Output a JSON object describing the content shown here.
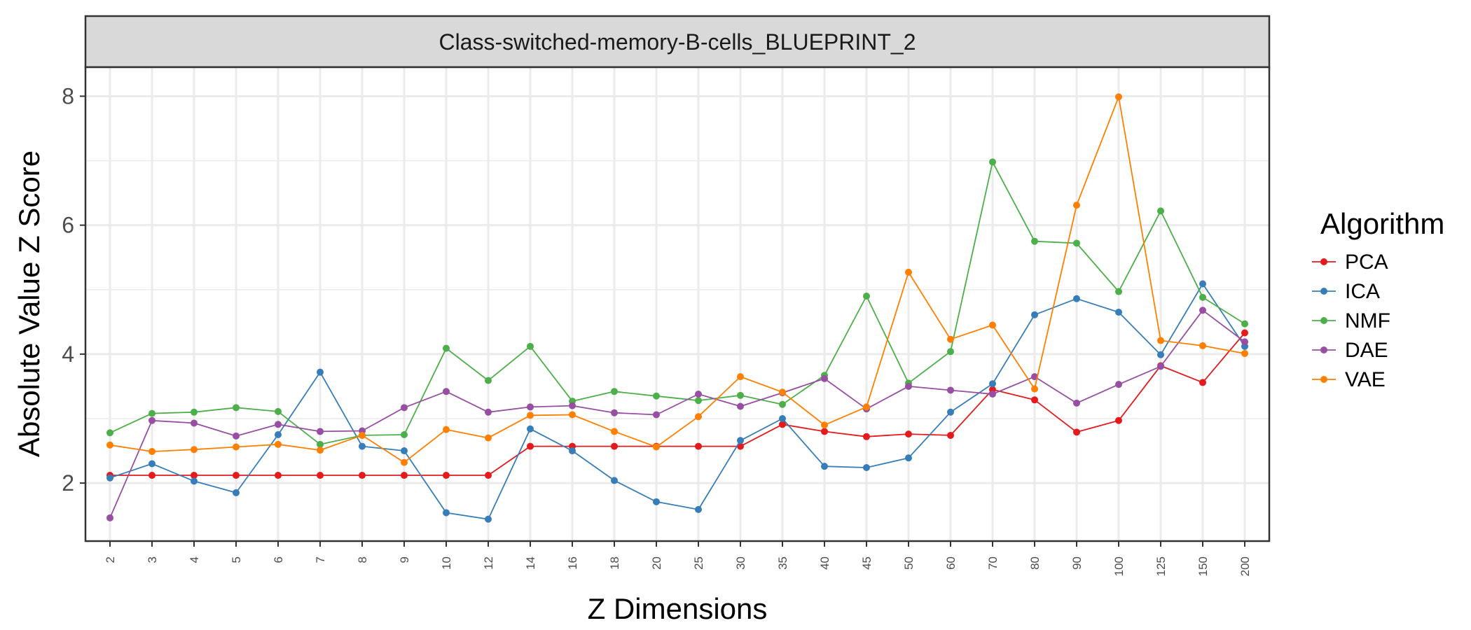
{
  "chart_data": {
    "type": "line",
    "title": "Class-switched-memory-B-cells_BLUEPRINT_2",
    "xlabel": "Z Dimensions",
    "ylabel": "Absolute Value Z Score",
    "categories": [
      "2",
      "3",
      "4",
      "5",
      "6",
      "7",
      "8",
      "9",
      "10",
      "12",
      "14",
      "16",
      "18",
      "20",
      "25",
      "30",
      "35",
      "40",
      "45",
      "50",
      "60",
      "70",
      "80",
      "90",
      "100",
      "125",
      "150",
      "200"
    ],
    "ylim": [
      1.1,
      8.45
    ],
    "yticks": [
      2,
      4,
      6,
      8
    ],
    "grid": true,
    "legend": {
      "title": "Algorithm",
      "position": "right"
    },
    "series": [
      {
        "name": "PCA",
        "color": "#e41a1c",
        "values": [
          2.12,
          2.12,
          2.12,
          2.12,
          2.12,
          2.12,
          2.12,
          2.12,
          2.12,
          2.12,
          2.57,
          2.57,
          2.57,
          2.57,
          2.57,
          2.57,
          2.91,
          2.8,
          2.72,
          2.76,
          2.74,
          3.45,
          3.29,
          2.79,
          2.97,
          3.82,
          3.56,
          4.33
        ]
      },
      {
        "name": "ICA",
        "color": "#377eb8",
        "values": [
          2.08,
          2.3,
          2.03,
          1.85,
          2.75,
          3.72,
          2.57,
          2.5,
          1.54,
          1.44,
          2.84,
          2.5,
          2.04,
          1.71,
          1.59,
          2.66,
          3.0,
          2.26,
          2.24,
          2.39,
          3.1,
          3.54,
          4.61,
          4.86,
          4.65,
          3.99,
          5.09,
          4.12
        ]
      },
      {
        "name": "NMF",
        "color": "#4daf4a",
        "values": [
          2.78,
          3.08,
          3.1,
          3.17,
          3.11,
          2.6,
          2.74,
          2.75,
          4.09,
          3.59,
          4.12,
          3.27,
          3.42,
          3.35,
          3.28,
          3.36,
          3.22,
          3.67,
          4.9,
          3.55,
          4.04,
          6.98,
          5.75,
          5.72,
          4.97,
          6.22,
          4.88,
          4.47
        ]
      },
      {
        "name": "DAE",
        "color": "#984ea3",
        "values": [
          1.46,
          2.97,
          2.93,
          2.73,
          2.91,
          2.8,
          2.81,
          3.17,
          3.42,
          3.1,
          3.18,
          3.2,
          3.09,
          3.06,
          3.38,
          3.19,
          3.4,
          3.62,
          3.15,
          3.5,
          3.44,
          3.38,
          3.65,
          3.24,
          3.53,
          3.81,
          4.68,
          4.19
        ]
      },
      {
        "name": "VAE",
        "color": "#ff7f00",
        "values": [
          2.59,
          2.49,
          2.52,
          2.56,
          2.6,
          2.51,
          2.74,
          2.32,
          2.83,
          2.7,
          3.05,
          3.06,
          2.8,
          2.56,
          3.03,
          3.65,
          3.41,
          2.9,
          3.18,
          5.27,
          4.23,
          4.45,
          3.46,
          6.31,
          7.99,
          4.21,
          4.13,
          4.01
        ]
      }
    ]
  }
}
